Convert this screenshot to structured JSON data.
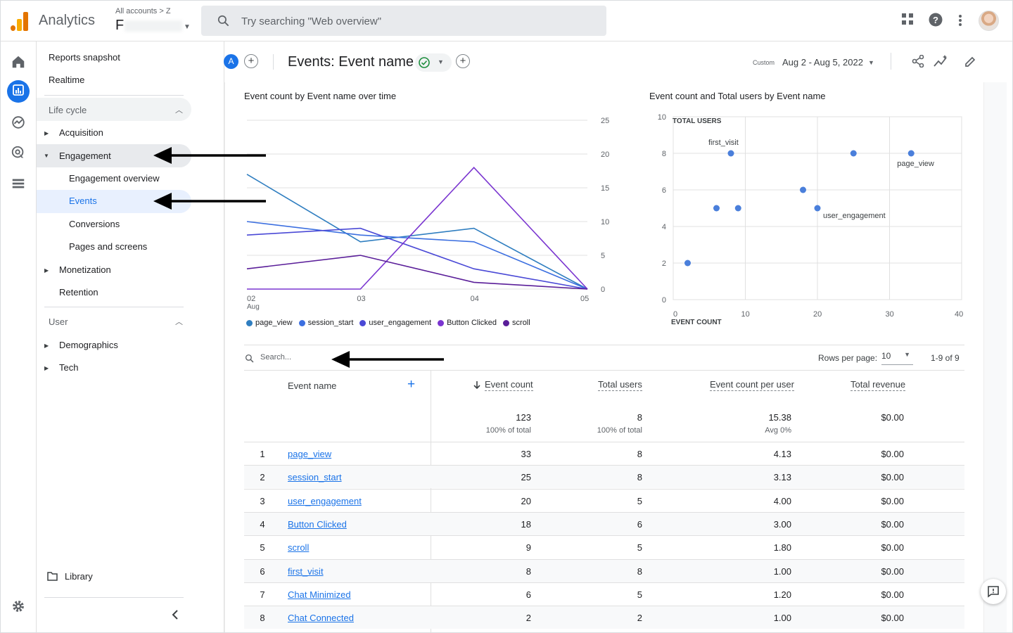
{
  "app": {
    "brand": "Analytics",
    "account_crumb": "All accounts > Z",
    "account_name": "F",
    "search_placeholder": "Try searching \"Web overview\""
  },
  "sidebar": {
    "top": [
      "Reports snapshot",
      "Realtime"
    ],
    "lifecycle_label": "Life cycle",
    "lifecycle_items": [
      "Acquisition",
      "Engagement",
      "Engagement overview",
      "Events",
      "Conversions",
      "Pages and screens",
      "Monetization",
      "Retention"
    ],
    "user_label": "User",
    "user_items": [
      "Demographics",
      "Tech"
    ],
    "library": "Library"
  },
  "header": {
    "avatar_letter": "A",
    "title": "Events: Event name",
    "custom_label": "Custom",
    "date_range": "Aug 2 - Aug 5, 2022"
  },
  "colors": {
    "accent": "#1a73e8",
    "page_view": "#2f7ec0",
    "session_start": "#3c6fe0",
    "user_engagement": "#4a49d6",
    "button_clicked": "#7a35d0",
    "scroll": "#5a1e99"
  },
  "chart_data": [
    {
      "type": "line",
      "title": "Event count by Event name over time",
      "x": [
        "02 Aug",
        "03",
        "04",
        "05"
      ],
      "ylim": [
        0,
        25
      ],
      "yticks": [
        0,
        5,
        10,
        15,
        20,
        25
      ],
      "series": [
        {
          "name": "page_view",
          "values": [
            17,
            7,
            9,
            0
          ]
        },
        {
          "name": "session_start",
          "values": [
            10,
            8,
            7,
            0
          ]
        },
        {
          "name": "user_engagement",
          "values": [
            8,
            9,
            3,
            0
          ]
        },
        {
          "name": "Button Clicked",
          "values": [
            0,
            0,
            18,
            0
          ]
        },
        {
          "name": "scroll",
          "values": [
            3,
            5,
            1,
            0
          ]
        }
      ],
      "legend": "bottom",
      "grid": true
    },
    {
      "type": "scatter",
      "title": "Event count and Total users by Event name",
      "xlabel": "EVENT COUNT",
      "ylabel": "TOTAL USERS",
      "xlim": [
        0,
        40
      ],
      "ylim": [
        0,
        10
      ],
      "xticks": [
        0,
        10,
        20,
        30,
        40
      ],
      "yticks": [
        0,
        2,
        4,
        6,
        8,
        10
      ],
      "points": [
        {
          "x": 33,
          "y": 8,
          "label": "page_view"
        },
        {
          "x": 25,
          "y": 8,
          "label": ""
        },
        {
          "x": 20,
          "y": 5,
          "label": "user_engagement"
        },
        {
          "x": 18,
          "y": 6,
          "label": ""
        },
        {
          "x": 9,
          "y": 5,
          "label": ""
        },
        {
          "x": 8,
          "y": 8,
          "label": "first_visit"
        },
        {
          "x": 6,
          "y": 5,
          "label": ""
        },
        {
          "x": 2,
          "y": 2,
          "label": ""
        }
      ],
      "grid": true
    }
  ],
  "table": {
    "search_placeholder": "Search...",
    "rows_per_page_label": "Rows per page:",
    "rows_per_page": "10",
    "pagination": "1-9 of 9",
    "columns": [
      "Event name",
      "Event count",
      "Total users",
      "Event count per user",
      "Total revenue"
    ],
    "totals": {
      "event_count": "123",
      "event_count_sub": "100% of total",
      "total_users": "8",
      "total_users_sub": "100% of total",
      "per_user": "15.38",
      "per_user_sub": "Avg 0%",
      "revenue": "$0.00"
    },
    "rows": [
      {
        "n": "1",
        "name": "page_view",
        "count": "33",
        "users": "8",
        "per_user": "4.13",
        "revenue": "$0.00"
      },
      {
        "n": "2",
        "name": "session_start",
        "count": "25",
        "users": "8",
        "per_user": "3.13",
        "revenue": "$0.00"
      },
      {
        "n": "3",
        "name": "user_engagement",
        "count": "20",
        "users": "5",
        "per_user": "4.00",
        "revenue": "$0.00"
      },
      {
        "n": "4",
        "name": "Button Clicked",
        "count": "18",
        "users": "6",
        "per_user": "3.00",
        "revenue": "$0.00"
      },
      {
        "n": "5",
        "name": "scroll",
        "count": "9",
        "users": "5",
        "per_user": "1.80",
        "revenue": "$0.00"
      },
      {
        "n": "6",
        "name": "first_visit",
        "count": "8",
        "users": "8",
        "per_user": "1.00",
        "revenue": "$0.00"
      },
      {
        "n": "7",
        "name": "Chat Minimized",
        "count": "6",
        "users": "5",
        "per_user": "1.20",
        "revenue": "$0.00"
      },
      {
        "n": "8",
        "name": "Chat Connected",
        "count": "2",
        "users": "2",
        "per_user": "1.00",
        "revenue": "$0.00"
      }
    ]
  }
}
